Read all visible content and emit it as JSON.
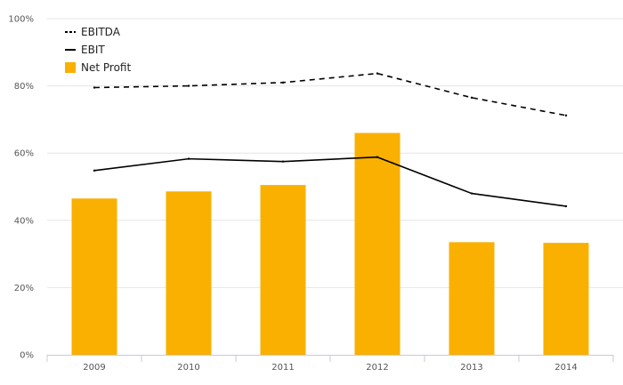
{
  "chart_data": {
    "type": "bar",
    "categories": [
      "2009",
      "2010",
      "2011",
      "2012",
      "2013",
      "2014"
    ],
    "y_ticks": [
      "0%",
      "20%",
      "40%",
      "60%",
      "80%",
      "100%"
    ],
    "ylim": [
      0,
      100
    ],
    "y_unit": "%",
    "grid": true,
    "legend_position": "top-left",
    "series": [
      {
        "name": "EBITDA",
        "kind": "line",
        "style": "dashed",
        "color": "#000000",
        "values": [
          79.5,
          80,
          81,
          83.7,
          76.5,
          71.2
        ]
      },
      {
        "name": "EBIT",
        "kind": "line",
        "style": "solid",
        "color": "#000000",
        "values": [
          54.8,
          58.3,
          57.5,
          58.8,
          48,
          44.2
        ]
      },
      {
        "name": "Net Profit",
        "kind": "bar",
        "color": "#f9b000",
        "values": [
          46.5,
          48.6,
          50.5,
          66,
          33.5,
          33.3
        ]
      }
    ]
  }
}
